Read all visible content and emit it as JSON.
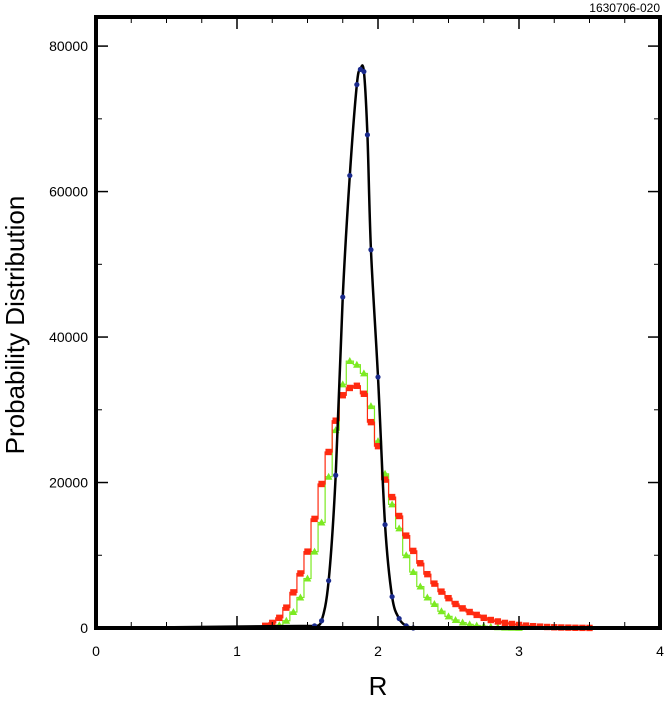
{
  "figure_id": "1630706-020",
  "chart_data": {
    "type": "line",
    "title": "",
    "xlabel": "R",
    "ylabel": "Probability Distribution",
    "xlim": [
      0,
      4
    ],
    "ylim": [
      0,
      84000
    ],
    "x_ticks": [
      0,
      1,
      2,
      3,
      4
    ],
    "y_ticks": [
      0,
      20000,
      40000,
      60000,
      80000
    ],
    "grid": false,
    "colors": {
      "narrow": "#1a2a8c",
      "wide_green": "#7cea22",
      "wide_red": "#ff2a10",
      "curve": "#000000"
    },
    "series": [
      {
        "style": "curve-with-dots",
        "color": "#1a2a8c",
        "x": [
          1.55,
          1.6,
          1.65,
          1.7,
          1.75,
          1.8,
          1.85,
          1.875,
          1.9,
          1.925,
          1.95,
          2.0,
          2.05,
          2.1,
          2.15,
          2.2,
          2.25
        ],
        "y": [
          300,
          1000,
          6500,
          21000,
          45500,
          62200,
          74700,
          76800,
          76500,
          67800,
          52000,
          34500,
          14200,
          4300,
          1300,
          300,
          0
        ]
      },
      {
        "style": "step-triangles",
        "color": "#7cea22",
        "x": [
          1.3,
          1.35,
          1.4,
          1.45,
          1.5,
          1.55,
          1.6,
          1.65,
          1.7,
          1.75,
          1.8,
          1.85,
          1.9,
          1.95,
          2.0,
          2.05,
          2.1,
          2.15,
          2.2,
          2.25,
          2.3,
          2.35,
          2.4,
          2.45,
          2.5,
          2.55,
          2.6,
          2.65,
          2.7,
          2.75,
          2.8,
          2.85,
          2.9,
          2.95,
          3.0
        ],
        "y": [
          400,
          1000,
          2200,
          4200,
          6800,
          10500,
          14500,
          20800,
          27200,
          33500,
          36700,
          36200,
          35000,
          30500,
          25700,
          21200,
          17000,
          13700,
          10000,
          7700,
          5700,
          4200,
          3300,
          2300,
          1600,
          1100,
          750,
          500,
          350,
          250,
          150,
          100,
          60,
          30,
          10
        ]
      },
      {
        "style": "step-squares",
        "color": "#ff2a10",
        "x": [
          1.2,
          1.25,
          1.3,
          1.35,
          1.4,
          1.45,
          1.5,
          1.55,
          1.6,
          1.65,
          1.7,
          1.75,
          1.8,
          1.85,
          1.9,
          1.95,
          2.0,
          2.05,
          2.1,
          2.15,
          2.2,
          2.25,
          2.3,
          2.35,
          2.4,
          2.45,
          2.5,
          2.55,
          2.6,
          2.65,
          2.7,
          2.75,
          2.8,
          2.85,
          2.9,
          2.95,
          3.0,
          3.05,
          3.1,
          3.15,
          3.2,
          3.25,
          3.3,
          3.35,
          3.4,
          3.45,
          3.5
        ],
        "y": [
          300,
          700,
          1400,
          2800,
          4900,
          7500,
          10500,
          15000,
          19800,
          24200,
          28500,
          32000,
          33000,
          33300,
          32200,
          28300,
          25000,
          20400,
          18000,
          15400,
          12700,
          10600,
          8900,
          7400,
          6100,
          5000,
          4100,
          3300,
          2700,
          2200,
          1800,
          1400,
          1100,
          900,
          700,
          550,
          420,
          330,
          250,
          190,
          140,
          100,
          70,
          50,
          30,
          20,
          10
        ]
      }
    ]
  }
}
